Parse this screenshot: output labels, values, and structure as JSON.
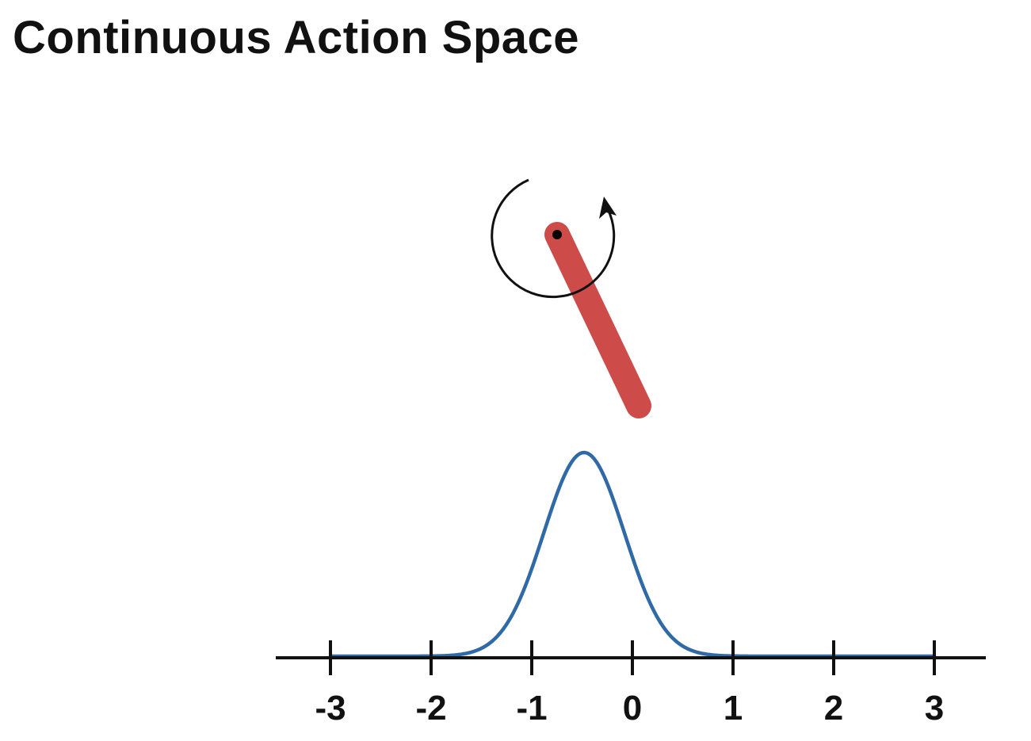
{
  "title": "Continuous Action Space",
  "colors": {
    "pendulum": "#cd4c4a",
    "curve": "#2f6aa6",
    "axis": "#111111",
    "rotation_arrow": "#111111"
  },
  "icons": {
    "pendulum": "pendulum-rod-icon",
    "pivot": "pivot-point-icon",
    "rotation": "rotation-arrow-icon"
  },
  "chart_data": {
    "type": "line",
    "distribution": "gaussian",
    "mean": -0.48,
    "std": 0.4,
    "xlim": [
      -3,
      3
    ],
    "ticks": [
      "-3",
      "-2",
      "-1",
      "0",
      "1",
      "2",
      "3"
    ],
    "title": "",
    "xlabel": "",
    "ylabel": ""
  }
}
